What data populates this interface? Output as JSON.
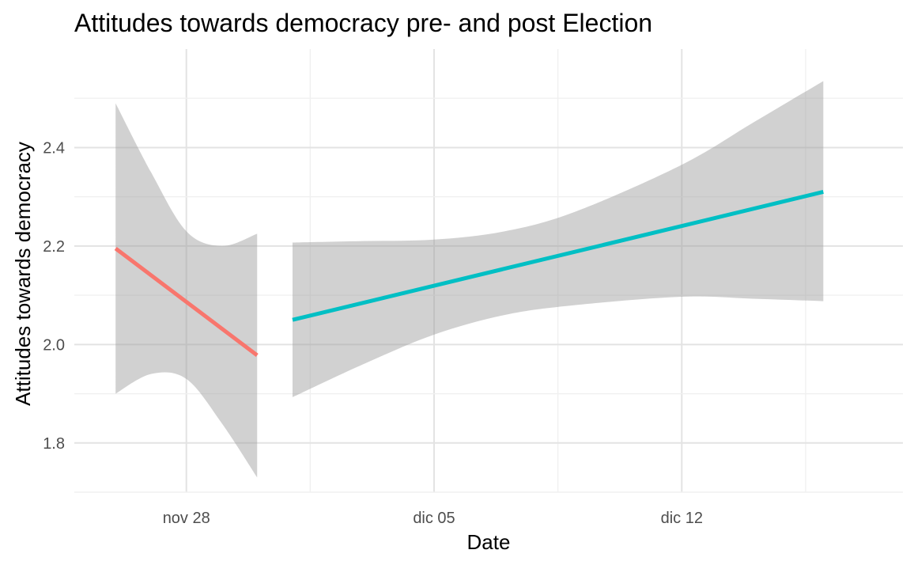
{
  "chart_data": {
    "type": "line",
    "title": "Attitudes towards democracy pre- and post Election",
    "xlabel": "Date",
    "ylabel": "Attitudes towards democracy",
    "x_ticks": [
      {
        "date": "2021-11-28",
        "label": "nov 28"
      },
      {
        "date": "2021-12-05",
        "label": "dic 05"
      },
      {
        "date": "2021-12-12",
        "label": "dic 12"
      }
    ],
    "y_ticks": [
      1.8,
      2.0,
      2.2,
      2.4
    ],
    "xlim": [
      "2021-11-24T20:00",
      "2021-12-18T06:00"
    ],
    "ylim": [
      1.7,
      2.6
    ],
    "grid": true,
    "series": [
      {
        "color": "#F8766D",
        "x": [
          "2021-11-26",
          "2021-11-27",
          "2021-11-28",
          "2021-11-29",
          "2021-11-30"
        ],
        "y": [
          2.195,
          2.15,
          2.085,
          2.03,
          1.978
        ],
        "lower": [
          1.9,
          1.94,
          1.93,
          1.84,
          1.73
        ],
        "upper": [
          2.49,
          2.35,
          2.23,
          2.2,
          2.225
        ]
      },
      {
        "color": "#00BFC4",
        "x": [
          "2021-12-01",
          "2021-12-03",
          "2021-12-05",
          "2021-12-07",
          "2021-12-09",
          "2021-12-12",
          "2021-12-14",
          "2021-12-16"
        ],
        "y": [
          2.05,
          2.085,
          2.115,
          2.145,
          2.175,
          2.23,
          2.27,
          2.31
        ],
        "lower": [
          1.893,
          1.96,
          2.02,
          2.06,
          2.08,
          2.097,
          2.093,
          2.088
        ],
        "upper": [
          2.207,
          2.21,
          2.213,
          2.23,
          2.27,
          2.365,
          2.45,
          2.535
        ]
      }
    ]
  }
}
